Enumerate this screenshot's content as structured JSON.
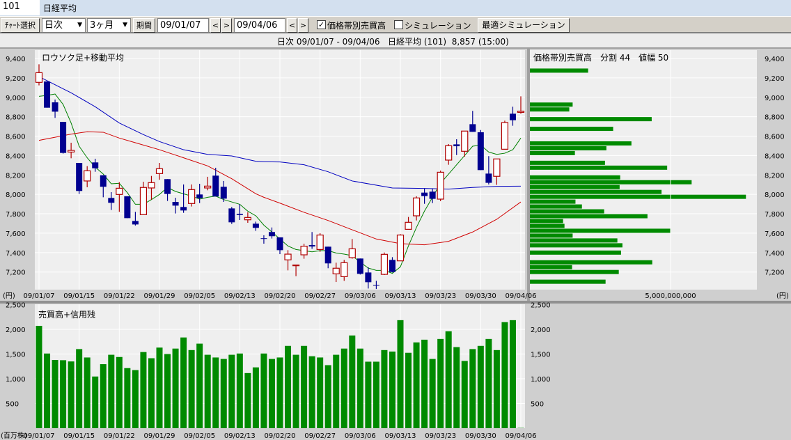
{
  "header": {
    "code": "101",
    "name": "日経平均"
  },
  "toolbar": {
    "chart_select": "ﾁｬｰﾄ選択",
    "interval": "日次",
    "range": "3ヶ月",
    "period_label": "期間",
    "start_date": "09/01/07",
    "end_date": "09/04/06",
    "prev": "<",
    "next": ">",
    "volume_profile_checkbox": {
      "label": "価格帯別売買高",
      "checked": true,
      "mark": "✓"
    },
    "simulation_checkbox": {
      "label": "シミュレーション",
      "checked": false
    },
    "optimal_simulation": "最適シミュレーション"
  },
  "status": {
    "text": "日次 09/01/07 - 09/04/06   日経平均 (101)  8,857 (15:00)"
  },
  "colors": {
    "up": "#b00000",
    "down": "#000090",
    "ma_short": "#008000",
    "ma_mid": "#d00000",
    "ma_long": "#0000c0",
    "volume": "#008a00",
    "plot_bg": "#efefef",
    "axis_bg": "#cfcfcf"
  },
  "chart_data": [
    {
      "type": "candlestick",
      "title": "ロウソク足+移動平均",
      "unit_label": "(円)",
      "ylim": [
        7000,
        9400
      ],
      "yticks": [
        "9,400",
        "9,200",
        "9,000",
        "8,800",
        "8,600",
        "8,400",
        "8,200",
        "8,000",
        "7,800",
        "7,600",
        "7,400",
        "7,200"
      ],
      "ytick_values": [
        9400,
        9200,
        9000,
        8800,
        8600,
        8400,
        8200,
        8000,
        7800,
        7600,
        7400,
        7200
      ],
      "xtick_labels": [
        "09/01/07",
        "09/01/15",
        "09/01/22",
        "09/01/29",
        "09/02/05",
        "09/02/13",
        "09/02/20",
        "09/02/27",
        "09/03/06",
        "09/03/13",
        "09/03/23",
        "09/03/30",
        "09/04/06"
      ],
      "grid": true,
      "dates": [
        "09/01/07",
        "09/01/08",
        "09/01/09",
        "09/01/13",
        "09/01/14",
        "09/01/15",
        "09/01/16",
        "09/01/19",
        "09/01/20",
        "09/01/21",
        "09/01/22",
        "09/01/23",
        "09/01/26",
        "09/01/27",
        "09/01/28",
        "09/01/29",
        "09/01/30",
        "09/02/02",
        "09/02/03",
        "09/02/04",
        "09/02/05",
        "09/02/06",
        "09/02/09",
        "09/02/10",
        "09/02/12",
        "09/02/13",
        "09/02/16",
        "09/02/17",
        "09/02/18",
        "09/02/19",
        "09/02/20",
        "09/02/23",
        "09/02/24",
        "09/02/25",
        "09/02/26",
        "09/02/27",
        "09/03/02",
        "09/03/03",
        "09/03/04",
        "09/03/05",
        "09/03/06",
        "09/03/09",
        "09/03/10",
        "09/03/11",
        "09/03/12",
        "09/03/13",
        "09/03/16",
        "09/03/17",
        "09/03/18",
        "09/03/19",
        "09/03/23",
        "09/03/24",
        "09/03/25",
        "09/03/26",
        "09/03/27",
        "09/03/30",
        "09/03/31",
        "09/04/01",
        "09/04/02",
        "09/04/03",
        "09/04/06"
      ],
      "ohlc": [
        [
          9154,
          9340,
          9123,
          9254
        ],
        [
          9163,
          9163,
          8893,
          8893
        ],
        [
          8948,
          8977,
          8788,
          8852
        ],
        [
          8747,
          8747,
          8420,
          8427
        ],
        [
          8436,
          8532,
          8372,
          8453
        ],
        [
          8324,
          8324,
          8004,
          8035
        ],
        [
          8138,
          8291,
          8073,
          8243
        ],
        [
          8329,
          8367,
          8233,
          8269
        ],
        [
          8197,
          8197,
          7970,
          8078
        ],
        [
          7963,
          8023,
          7839,
          7913
        ],
        [
          7999,
          8126,
          7820,
          8063
        ],
        [
          7980,
          7980,
          7755,
          7755
        ],
        [
          7726,
          7820,
          7679,
          7690
        ],
        [
          7791,
          8130,
          7791,
          8071
        ],
        [
          8066,
          8190,
          7946,
          8121
        ],
        [
          8214,
          8324,
          8150,
          8264
        ],
        [
          8157,
          8157,
          7932,
          8004
        ],
        [
          7922,
          7965,
          7803,
          7884
        ],
        [
          7870,
          8102,
          7810,
          7834
        ],
        [
          7906,
          8102,
          7875,
          8049
        ],
        [
          7999,
          8109,
          7910,
          7961
        ],
        [
          8066,
          8181,
          8042,
          8085
        ],
        [
          8193,
          8274,
          7978,
          7978
        ],
        [
          8078,
          8138,
          7922,
          7956
        ],
        [
          7855,
          7870,
          7695,
          7712
        ],
        [
          7800,
          7898,
          7736,
          7788
        ],
        [
          7738,
          7815,
          7707,
          7762
        ],
        [
          7698,
          7719,
          7624,
          7655
        ],
        [
          7548,
          7578,
          7492,
          7545
        ],
        [
          7612,
          7659,
          7545,
          7569
        ],
        [
          7557,
          7557,
          7384,
          7425
        ],
        [
          7325,
          7425,
          7217,
          7384
        ],
        [
          7270,
          7272,
          7157,
          7272
        ],
        [
          7377,
          7492,
          7337,
          7466
        ],
        [
          7478,
          7612,
          7439,
          7463
        ],
        [
          7432,
          7600,
          7408,
          7581
        ],
        [
          7461,
          7461,
          7239,
          7289
        ],
        [
          7181,
          7296,
          7097,
          7239
        ],
        [
          7152,
          7325,
          7109,
          7296
        ],
        [
          7348,
          7540,
          7337,
          7439
        ],
        [
          7339,
          7339,
          7174,
          7181
        ],
        [
          7195,
          7248,
          7030,
          7095
        ],
        [
          7066,
          7109,
          7025,
          7062
        ],
        [
          7176,
          7401,
          7169,
          7382
        ],
        [
          7325,
          7353,
          7195,
          7200
        ],
        [
          7315,
          7590,
          7315,
          7581
        ],
        [
          7640,
          7767,
          7640,
          7712
        ],
        [
          7779,
          7980,
          7731,
          7963
        ],
        [
          8018,
          8061,
          7903,
          7982
        ],
        [
          8028,
          8061,
          7910,
          7954
        ],
        [
          7951,
          8245,
          7930,
          8228
        ],
        [
          8353,
          8518,
          8305,
          8501
        ],
        [
          8515,
          8568,
          8405,
          8496
        ],
        [
          8444,
          8652,
          8389,
          8652
        ],
        [
          8723,
          8860,
          8644,
          8644
        ],
        [
          8640,
          8663,
          8250,
          8250
        ],
        [
          8214,
          8394,
          8102,
          8119
        ],
        [
          8186,
          8365,
          8098,
          8365
        ],
        [
          8465,
          8759,
          8465,
          8740
        ],
        [
          8831,
          8903,
          8707,
          8764
        ],
        [
          8845,
          9010,
          8831,
          8857
        ]
      ],
      "ma_short": [
        9010,
        9020,
        9034,
        8927,
        8735,
        8496,
        8377,
        8281,
        8209,
        8109,
        8114,
        8018,
        7898,
        7898,
        7946,
        7999,
        8071,
        8030,
        8006,
        7982,
        7951,
        7970,
        7982,
        7946,
        7922,
        7898,
        7827,
        7779,
        7683,
        7612,
        7540,
        7468,
        7432,
        7420,
        7408,
        7420,
        7420,
        7396,
        7384,
        7368,
        7301,
        7241,
        7217,
        7217,
        7186,
        7253,
        7468,
        7659,
        7827,
        7970,
        8114,
        8209,
        8305,
        8400,
        8496,
        8508,
        8436,
        8412,
        8424,
        8460,
        8580
      ],
      "ma_mid": [
        [
          "09/01/07",
          8556
        ],
        [
          "09/01/14",
          8621
        ],
        [
          "09/01/16",
          8645
        ],
        [
          "09/01/20",
          8640
        ],
        [
          "09/01/22",
          8580
        ],
        [
          "09/01/26",
          8532
        ],
        [
          "09/01/29",
          8460
        ],
        [
          "09/02/03",
          8377
        ],
        [
          "09/02/06",
          8293
        ],
        [
          "09/02/12",
          8161
        ],
        [
          "09/02/17",
          8006
        ],
        [
          "09/02/18",
          7970
        ],
        [
          "09/02/20",
          7910
        ],
        [
          "09/02/25",
          7815
        ],
        [
          "09/03/02",
          7731
        ],
        [
          "09/03/05",
          7635
        ],
        [
          "09/03/10",
          7540
        ],
        [
          "09/03/13",
          7492
        ],
        [
          "09/03/18",
          7480
        ],
        [
          "09/03/24",
          7516
        ],
        [
          "09/03/27",
          7612
        ],
        [
          "09/04/01",
          7743
        ],
        [
          "09/04/06",
          7922
        ]
      ],
      "ma_long": [
        [
          "09/01/07",
          9213
        ],
        [
          "09/01/14",
          9046
        ],
        [
          "09/01/19",
          8903
        ],
        [
          "09/01/22",
          8735
        ],
        [
          "09/01/27",
          8616
        ],
        [
          "09/01/29",
          8544
        ],
        [
          "09/02/03",
          8460
        ],
        [
          "09/02/06",
          8412
        ],
        [
          "09/02/12",
          8396
        ],
        [
          "09/02/17",
          8341
        ],
        [
          "09/02/18",
          8336
        ],
        [
          "09/02/20",
          8334
        ],
        [
          "09/02/25",
          8305
        ],
        [
          "09/03/02",
          8233
        ],
        [
          "09/03/05",
          8138
        ],
        [
          "09/03/12",
          8066
        ],
        [
          "09/03/18",
          8061
        ],
        [
          "09/03/24",
          8054
        ],
        [
          "09/03/27",
          8071
        ],
        [
          "09/04/01",
          8083
        ],
        [
          "09/04/06",
          8085
        ]
      ]
    },
    {
      "type": "bar",
      "orientation": "horizontal",
      "title": "価格帯別売買高　分割 44　値幅 50",
      "xtick_labels": [
        "5,000,000,000"
      ],
      "xtick_values": [
        5000000000
      ],
      "unit_label": "(円)",
      "price_levels": [
        9275,
        8925,
        8875,
        8775,
        8675,
        8525,
        8475,
        8425,
        8325,
        8275,
        8175,
        8125,
        8075,
        8025,
        7975,
        7925,
        7875,
        7825,
        7775,
        7725,
        7675,
        7625,
        7575,
        7525,
        7475,
        7400,
        7300,
        7250,
        7200,
        7100
      ],
      "values": [
        2070000000,
        1520000000,
        1400000000,
        4330000000,
        2960000000,
        3610000000,
        2720000000,
        1600000000,
        2670000000,
        4880000000,
        3210000000,
        5750000000,
        3190000000,
        4680000000,
        7680000000,
        1620000000,
        1850000000,
        2640000000,
        4180000000,
        1180000000,
        1230000000,
        5000000000,
        1520000000,
        3110000000,
        3290000000,
        3240000000,
        4350000000,
        1500000000,
        3160000000,
        2690000000
      ]
    },
    {
      "type": "bar",
      "title": "売買高+信用残",
      "unit_label": "(百万株)",
      "ylim": [
        0,
        2500
      ],
      "yticks": [
        "2,500",
        "2,000",
        "1,500",
        "1,000",
        "500"
      ],
      "ytick_values": [
        2500,
        2000,
        1500,
        1000,
        500
      ],
      "values": [
        2070,
        1510,
        1380,
        1375,
        1350,
        1600,
        1430,
        1045,
        1295,
        1485,
        1440,
        1215,
        1175,
        1540,
        1415,
        1630,
        1500,
        1610,
        1835,
        1580,
        1710,
        1485,
        1430,
        1400,
        1485,
        1510,
        1115,
        1230,
        1510,
        1400,
        1430,
        1665,
        1485,
        1665,
        1455,
        1430,
        1275,
        1485,
        1610,
        1875,
        1610,
        1345,
        1345,
        1580,
        1550,
        2185,
        1525,
        1735,
        1790,
        1400,
        1805,
        1960,
        1640,
        1360,
        1600,
        1665,
        1805,
        1580,
        2145,
        2185,
        5
      ]
    }
  ]
}
